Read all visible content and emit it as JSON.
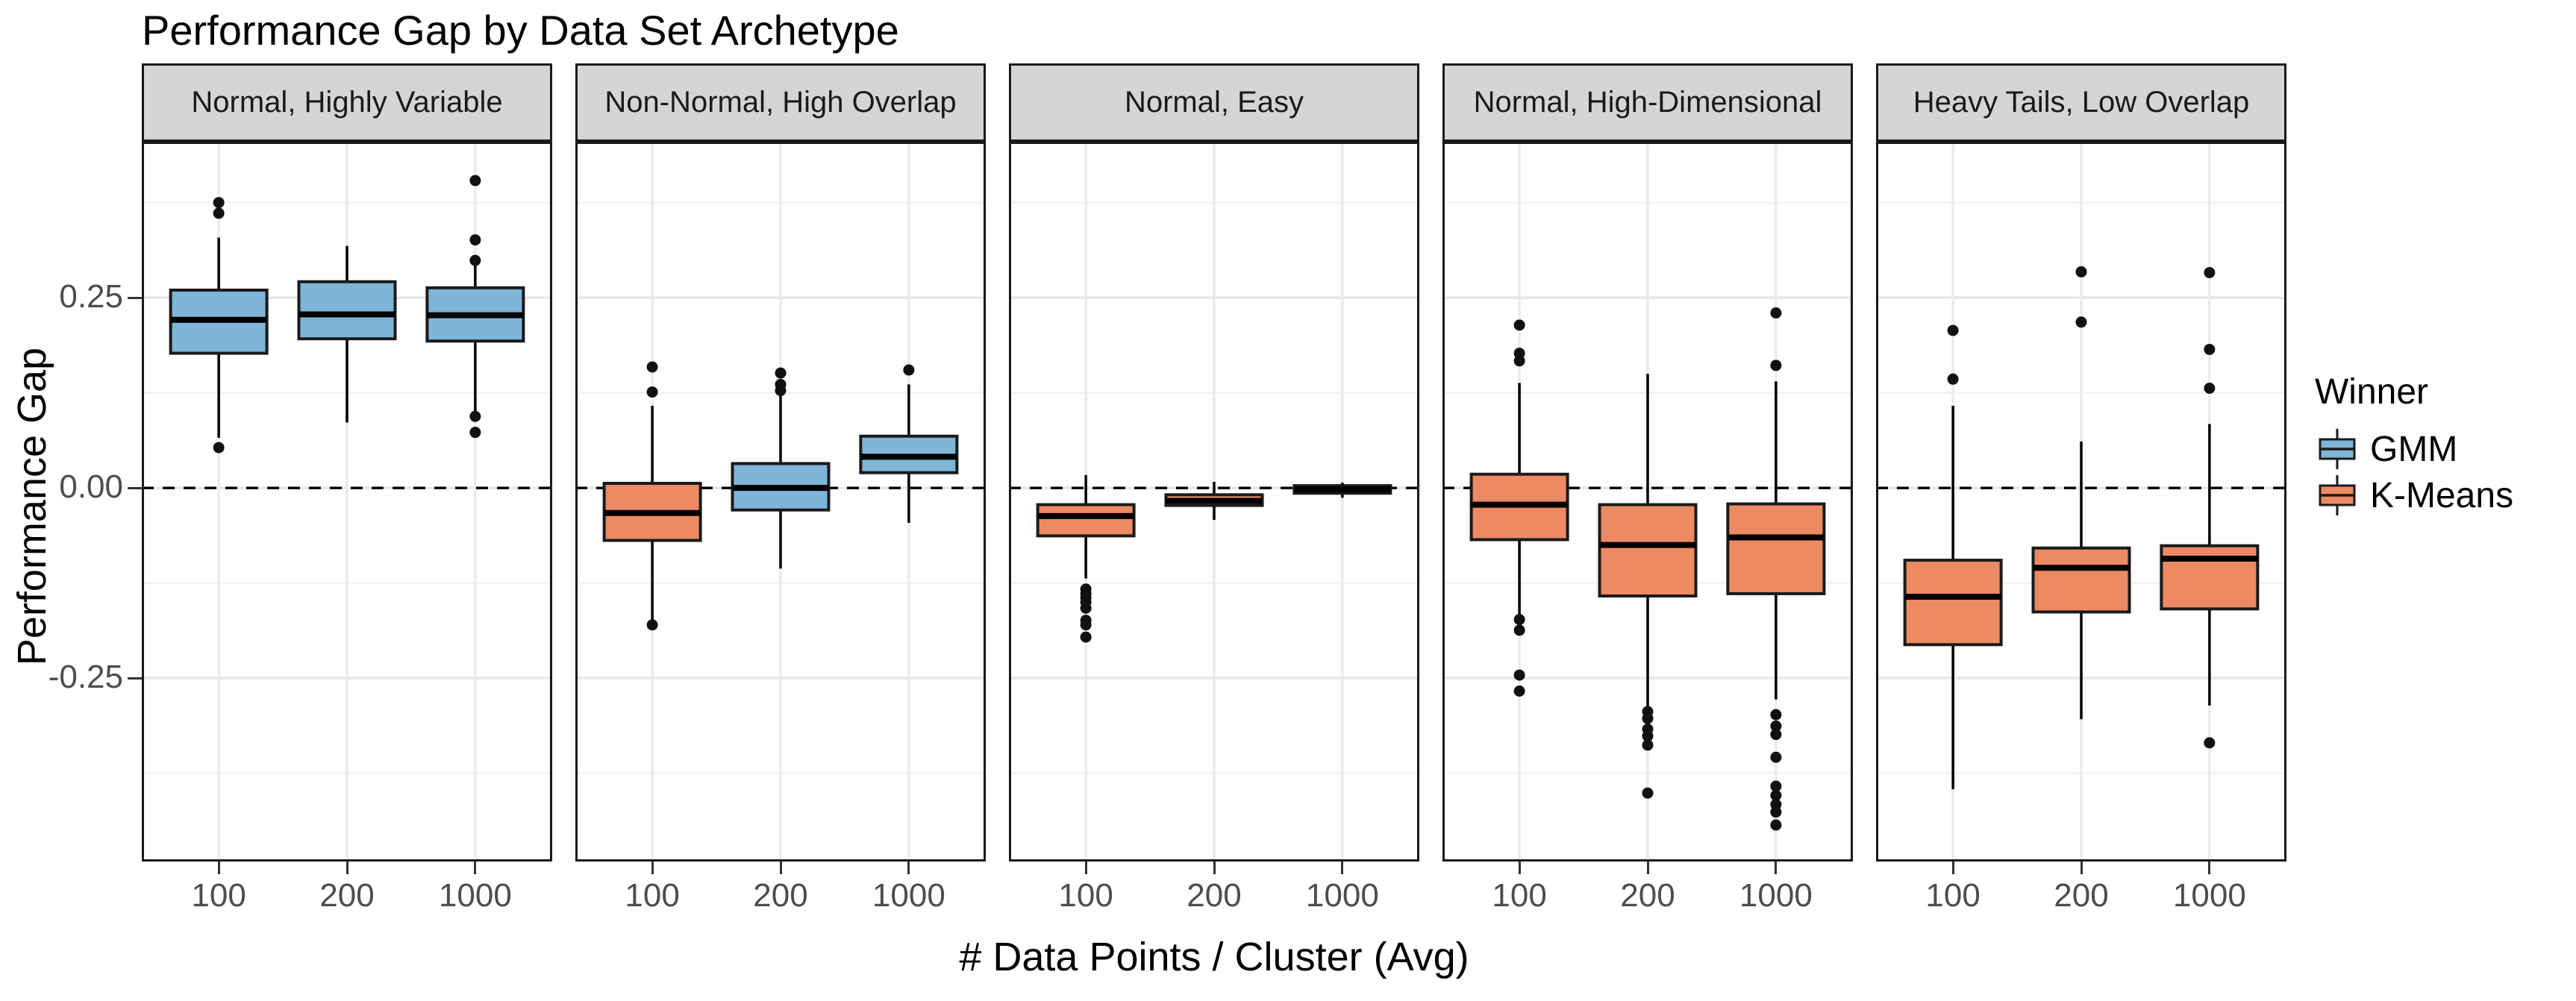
{
  "chart_data": {
    "type": "boxplot",
    "title": "Performance Gap by Data Set Archetype",
    "xlabel": "# Data Points / Cluster (Avg)",
    "ylabel": "Performance Gap",
    "x_categories": [
      "100",
      "200",
      "1000"
    ],
    "ylim": [
      -0.491,
      0.455
    ],
    "y_ticks": [
      {
        "label": "0.25",
        "value": 0.25
      },
      {
        "label": "0.00",
        "value": 0.0
      },
      {
        "label": "-0.25",
        "value": -0.25
      }
    ],
    "y_minor_grid": [
      0.375,
      0.125,
      -0.125,
      -0.375
    ],
    "zero_reference_line": {
      "value": 0.0,
      "style": "dashed",
      "color": "#000000"
    },
    "grid": "on, light gray, white panel background",
    "legend": {
      "title": "Winner",
      "position": "right",
      "entries": [
        {
          "label": "GMM",
          "color": "#7EB5D8"
        },
        {
          "label": "K-Means",
          "color": "#EC8A63"
        }
      ]
    },
    "facets": [
      {
        "label": "Normal, Highly Variable",
        "boxes": [
          {
            "x": "100",
            "winner": "GMM",
            "whisker_low": 0.066,
            "q1": 0.177,
            "median": 0.221,
            "q3": 0.26,
            "whisker_high": 0.329,
            "outliers": [
              0.375,
              0.361,
              0.053
            ]
          },
          {
            "x": "200",
            "winner": "GMM",
            "whisker_low": 0.086,
            "q1": 0.196,
            "median": 0.228,
            "q3": 0.271,
            "whisker_high": 0.318,
            "outliers": []
          },
          {
            "x": "1000",
            "winner": "GMM",
            "whisker_low": 0.097,
            "q1": 0.193,
            "median": 0.227,
            "q3": 0.263,
            "whisker_high": 0.297,
            "outliers": [
              0.404,
              0.326,
              0.299,
              0.094,
              0.073
            ]
          }
        ]
      },
      {
        "label": "Non-Normal, High Overlap",
        "boxes": [
          {
            "x": "100",
            "winner": "K-Means",
            "whisker_low": -0.173,
            "q1": -0.069,
            "median": -0.033,
            "q3": 0.006,
            "whisker_high": 0.108,
            "outliers": [
              0.159,
              0.126,
              -0.18
            ]
          },
          {
            "x": "200",
            "winner": "GMM",
            "whisker_low": -0.106,
            "q1": -0.029,
            "median": 0.0,
            "q3": 0.032,
            "whisker_high": 0.124,
            "outliers": [
              0.151,
              0.136,
              0.128
            ]
          },
          {
            "x": "1000",
            "winner": "GMM",
            "whisker_low": -0.046,
            "q1": 0.02,
            "median": 0.041,
            "q3": 0.068,
            "whisker_high": 0.136,
            "outliers": [
              0.155
            ]
          }
        ]
      },
      {
        "label": "Normal, Easy",
        "boxes": [
          {
            "x": "100",
            "winner": "K-Means",
            "whisker_low": -0.119,
            "q1": -0.063,
            "median": -0.037,
            "q3": -0.022,
            "whisker_high": 0.017,
            "outliers": [
              -0.133,
              -0.139,
              -0.144,
              -0.15,
              -0.158,
              -0.174,
              -0.18,
              -0.196
            ]
          },
          {
            "x": "200",
            "winner": "K-Means",
            "whisker_low": -0.042,
            "q1": -0.023,
            "median": -0.017,
            "q3": -0.009,
            "whisker_high": 0.008,
            "outliers": []
          },
          {
            "x": "1000",
            "winner": "K-Means",
            "whisker_low": -0.013,
            "q1": -0.007,
            "median": -0.002,
            "q3": 0.003,
            "whisker_high": 0.007,
            "outliers": []
          }
        ]
      },
      {
        "label": "Normal, High-Dimensional",
        "boxes": [
          {
            "x": "100",
            "winner": "K-Means",
            "whisker_low": -0.166,
            "q1": -0.068,
            "median": -0.022,
            "q3": 0.018,
            "whisker_high": 0.138,
            "outliers": [
              0.214,
              0.177,
              0.167,
              -0.173,
              -0.187,
              -0.246,
              -0.267
            ]
          },
          {
            "x": "200",
            "winner": "K-Means",
            "whisker_low": -0.289,
            "q1": -0.142,
            "median": -0.075,
            "q3": -0.022,
            "whisker_high": 0.15,
            "outliers": [
              -0.294,
              -0.303,
              -0.317,
              -0.326,
              -0.338,
              -0.401
            ]
          },
          {
            "x": "1000",
            "winner": "K-Means",
            "whisker_low": -0.278,
            "q1": -0.139,
            "median": -0.065,
            "q3": -0.021,
            "whisker_high": 0.14,
            "outliers": [
              0.23,
              0.161,
              -0.298,
              -0.313,
              -0.324,
              -0.354,
              -0.392,
              -0.404,
              -0.416,
              -0.426,
              -0.443
            ]
          }
        ]
      },
      {
        "label": "Heavy Tails, Low Overlap",
        "boxes": [
          {
            "x": "100",
            "winner": "K-Means",
            "whisker_low": -0.396,
            "q1": -0.206,
            "median": -0.143,
            "q3": -0.095,
            "whisker_high": 0.108,
            "outliers": [
              0.207,
              0.143
            ]
          },
          {
            "x": "200",
            "winner": "K-Means",
            "whisker_low": -0.304,
            "q1": -0.163,
            "median": -0.105,
            "q3": -0.079,
            "whisker_high": 0.061,
            "outliers": [
              0.284,
              0.218
            ]
          },
          {
            "x": "1000",
            "winner": "K-Means",
            "whisker_low": -0.286,
            "q1": -0.159,
            "median": -0.093,
            "q3": -0.076,
            "whisker_high": 0.084,
            "outliers": [
              0.283,
              0.182,
              0.131,
              -0.335
            ]
          }
        ]
      }
    ]
  }
}
